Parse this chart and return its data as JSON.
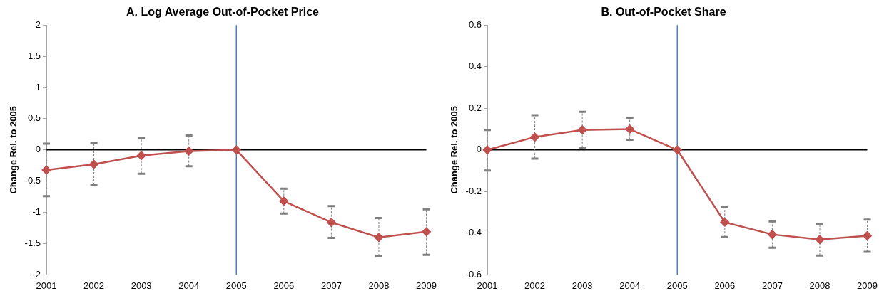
{
  "chart_data": [
    {
      "type": "line",
      "title": "A. Log Average Out-of-Pocket Price",
      "ylabel": "Change Rel. to 2005",
      "categories": [
        "2001",
        "2002",
        "2003",
        "2004",
        "2005",
        "2006",
        "2007",
        "2008",
        "2009"
      ],
      "series": [
        {
          "color": "#c0504d",
          "values": [
            -0.32,
            -0.23,
            -0.09,
            -0.02,
            0,
            -0.82,
            -1.16,
            -1.4,
            -1.31
          ],
          "errors": [
            [
              -0.74,
              0.1
            ],
            [
              -0.56,
              0.11
            ],
            [
              -0.38,
              0.19
            ],
            [
              -0.26,
              0.23
            ],
            null,
            [
              -1.02,
              -0.62
            ],
            [
              -1.41,
              -0.9
            ],
            [
              -1.7,
              -1.09
            ],
            [
              -1.68,
              -0.95
            ]
          ]
        }
      ],
      "ylim": [
        -2,
        2
      ],
      "yticks": [
        -2,
        -1.5,
        -1,
        -0.5,
        0,
        0.5,
        1,
        1.5,
        2
      ],
      "ref_lines": [
        {
          "axis": "x",
          "value": "2005",
          "color": "#4a7ebb"
        },
        {
          "axis": "y",
          "value": 0,
          "color": "#000000"
        }
      ],
      "grid": false,
      "legend": false,
      "marker": "diamond",
      "line_style": "solid"
    },
    {
      "type": "line",
      "title": "B. Out-of-Pocket Share",
      "ylabel": "Change Rel. to 2005",
      "categories": [
        "2001",
        "2002",
        "2003",
        "2004",
        "2005",
        "2006",
        "2007",
        "2008",
        "2009"
      ],
      "series": [
        {
          "color": "#c0504d",
          "values": [
            0.0,
            0.062,
            0.096,
            0.1,
            0,
            -0.347,
            -0.406,
            -0.43,
            -0.412
          ],
          "errors": [
            [
              -0.099,
              0.096
            ],
            [
              -0.042,
              0.167
            ],
            [
              0.011,
              0.183
            ],
            [
              0.049,
              0.151
            ],
            null,
            [
              -0.418,
              -0.276
            ],
            [
              -0.47,
              -0.343
            ],
            [
              -0.507,
              -0.356
            ],
            [
              -0.489,
              -0.335
            ]
          ]
        }
      ],
      "ylim": [
        -0.6,
        0.6
      ],
      "yticks": [
        -0.6,
        -0.4,
        -0.2,
        0,
        0.2,
        0.4,
        0.6
      ],
      "ref_lines": [
        {
          "axis": "x",
          "value": "2005",
          "color": "#4a7ebb"
        },
        {
          "axis": "y",
          "value": 0,
          "color": "#000000"
        }
      ],
      "grid": false,
      "legend": false,
      "marker": "diamond",
      "line_style": "solid"
    }
  ]
}
